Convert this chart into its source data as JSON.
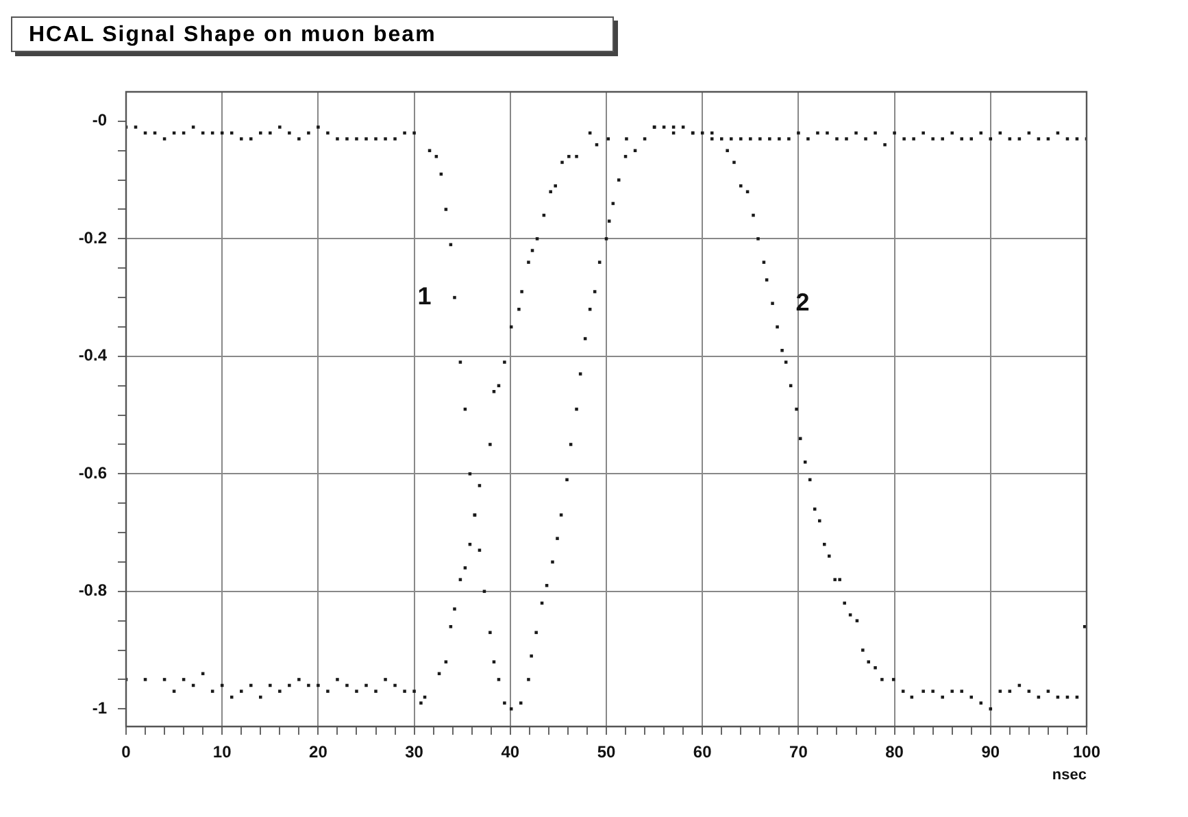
{
  "chart_data": {
    "type": "scatter",
    "title": "HCAL Signal Shape on muon beam",
    "xlabel": "nsec",
    "xlim": [
      0,
      100
    ],
    "ylim": [
      -1.03,
      0.05
    ],
    "xticks": [
      0,
      {
        "value": 2,
        "label": null
      },
      {
        "value": 4,
        "label": null
      },
      {
        "value": 6,
        "label": null
      },
      {
        "value": 8,
        "label": null
      },
      10,
      {
        "value": 12,
        "label": null
      },
      {
        "value": 14,
        "label": null
      },
      {
        "value": 16,
        "label": null
      },
      {
        "value": 18,
        "label": null
      },
      20,
      {
        "value": 22,
        "label": null
      },
      {
        "value": 24,
        "label": null
      },
      {
        "value": 26,
        "label": null
      },
      {
        "value": 28,
        "label": null
      },
      30,
      {
        "value": 32,
        "label": null
      },
      {
        "value": 34,
        "label": null
      },
      {
        "value": 36,
        "label": null
      },
      {
        "value": 38,
        "label": null
      },
      40,
      {
        "value": 42,
        "label": null
      },
      {
        "value": 44,
        "label": null
      },
      {
        "value": 46,
        "label": null
      },
      {
        "value": 48,
        "label": null
      },
      50,
      {
        "value": 52,
        "label": null
      },
      {
        "value": 54,
        "label": null
      },
      {
        "value": 56,
        "label": null
      },
      {
        "value": 58,
        "label": null
      },
      60,
      {
        "value": 62,
        "label": null
      },
      {
        "value": 64,
        "label": null
      },
      {
        "value": 66,
        "label": null
      },
      {
        "value": 68,
        "label": null
      },
      70,
      {
        "value": 72,
        "label": null
      },
      {
        "value": 74,
        "label": null
      },
      {
        "value": 76,
        "label": null
      },
      {
        "value": 78,
        "label": null
      },
      80,
      {
        "value": 82,
        "label": null
      },
      {
        "value": 84,
        "label": null
      },
      {
        "value": 86,
        "label": null
      },
      {
        "value": 88,
        "label": null
      },
      90,
      {
        "value": 92,
        "label": null
      },
      {
        "value": 94,
        "label": null
      },
      {
        "value": 96,
        "label": null
      },
      {
        "value": 98,
        "label": null
      },
      100
    ],
    "yticks": [
      {
        "value": 0,
        "label": "-0"
      },
      {
        "value": -0.05,
        "label": null
      },
      {
        "value": -0.1,
        "label": null
      },
      {
        "value": -0.15,
        "label": null
      },
      -0.2,
      {
        "value": -0.25,
        "label": null
      },
      {
        "value": -0.3,
        "label": null
      },
      {
        "value": -0.35,
        "label": null
      },
      -0.4,
      {
        "value": -0.45,
        "label": null
      },
      {
        "value": -0.5,
        "label": null
      },
      {
        "value": -0.55,
        "label": null
      },
      -0.6,
      {
        "value": -0.65,
        "label": null
      },
      {
        "value": -0.7,
        "label": null
      },
      {
        "value": -0.75,
        "label": null
      },
      -0.8,
      {
        "value": -0.85,
        "label": null
      },
      {
        "value": -0.9,
        "label": null
      },
      {
        "value": -0.95,
        "label": null
      },
      -1
    ],
    "grid": true,
    "marker": "square",
    "annotations": [
      {
        "text": "1",
        "x": 34.2,
        "y": -0.3
      },
      {
        "text": "2",
        "x": 67.3,
        "y": -0.31
      }
    ],
    "series": [
      {
        "color": "#1a1a1a",
        "x": [
          0,
          1,
          2,
          3,
          4,
          5,
          6,
          7,
          8,
          9,
          10,
          11,
          12,
          13,
          14,
          15,
          16,
          17,
          18,
          19,
          20,
          21,
          22,
          23,
          24,
          25,
          26,
          27,
          28,
          29,
          30,
          31.6,
          32.3,
          32.8,
          33.3,
          33.8,
          34.2,
          34.8,
          35.3,
          35.8,
          36.3,
          36.8,
          37.3,
          37.9,
          38.3,
          38.8,
          39.4,
          40.1,
          41.1,
          41.9,
          42.2,
          42.7,
          43.3,
          43.8,
          44.4,
          44.9,
          45.3,
          45.9,
          46.3,
          46.9,
          47.3,
          47.8,
          48.3,
          48.8,
          49.3,
          50.0,
          50.3,
          50.7,
          51.3,
          52.0,
          53.0,
          54,
          55,
          56,
          57,
          58,
          59,
          60,
          61,
          62,
          63,
          64,
          65,
          66,
          67,
          68,
          69,
          70,
          71,
          72,
          73,
          74,
          75,
          76,
          77,
          78,
          79,
          80,
          81,
          82,
          83,
          84,
          85,
          86,
          87,
          88,
          89,
          90,
          91,
          92,
          93,
          94,
          95,
          96,
          97,
          98,
          99,
          100
        ],
        "values": [
          -0.01,
          -0.01,
          -0.02,
          -0.02,
          -0.03,
          -0.02,
          -0.02,
          -0.01,
          -0.02,
          -0.02,
          -0.02,
          -0.02,
          -0.03,
          -0.03,
          -0.02,
          -0.02,
          -0.01,
          -0.02,
          -0.03,
          -0.02,
          -0.01,
          -0.02,
          -0.03,
          -0.03,
          -0.03,
          -0.03,
          -0.03,
          -0.03,
          -0.03,
          -0.02,
          -0.02,
          -0.05,
          -0.06,
          -0.09,
          -0.15,
          -0.21,
          -0.3,
          -0.41,
          -0.49,
          -0.6,
          -0.67,
          -0.73,
          -0.8,
          -0.87,
          -0.92,
          -0.95,
          -0.99,
          -1.0,
          -0.99,
          -0.95,
          -0.91,
          -0.87,
          -0.82,
          -0.79,
          -0.75,
          -0.71,
          -0.67,
          -0.61,
          -0.55,
          -0.49,
          -0.43,
          -0.37,
          -0.32,
          -0.29,
          -0.24,
          -0.2,
          -0.17,
          -0.14,
          -0.1,
          -0.06,
          -0.05,
          -0.03,
          -0.01,
          -0.01,
          -0.02,
          -0.01,
          -0.02,
          -0.02,
          -0.03,
          -0.03,
          -0.03,
          -0.03,
          -0.03,
          -0.03,
          -0.03,
          -0.03,
          -0.03,
          -0.02,
          -0.03,
          -0.02,
          -0.02,
          -0.03,
          -0.03,
          -0.02,
          -0.03,
          -0.02,
          -0.04,
          -0.02,
          -0.03,
          -0.03,
          -0.02,
          -0.03,
          -0.03,
          -0.02,
          -0.03,
          -0.03,
          -0.02,
          -0.03,
          -0.02,
          -0.03,
          -0.03,
          -0.02,
          -0.03,
          -0.03,
          -0.02,
          -0.03,
          -0.03,
          -0.03
        ]
      },
      {
        "color": "#1a1a1a",
        "x": [
          0,
          2,
          4,
          5,
          6,
          7,
          8,
          9,
          10,
          11,
          12,
          13,
          14,
          15,
          16,
          17,
          18,
          19,
          20,
          21,
          22,
          23,
          24,
          25,
          26,
          27,
          28,
          29,
          30,
          30.7,
          31.1,
          32.6,
          33.3,
          33.8,
          34.2,
          34.8,
          35.3,
          35.8,
          36.3,
          36.8,
          37.9,
          38.3,
          38.8,
          39.4,
          40.1,
          40.9,
          41.2,
          41.9,
          42.3,
          42.8,
          43.5,
          44.2,
          44.7,
          45.4,
          46.1,
          46.9,
          48.3,
          49,
          50.2,
          52.1,
          55,
          57,
          59,
          61,
          62.6,
          63.3,
          64,
          64.7,
          65.3,
          65.8,
          66.4,
          66.7,
          67.3,
          67.8,
          68.3,
          68.7,
          69.2,
          69.8,
          70.2,
          70.7,
          71.2,
          71.7,
          72.2,
          72.7,
          73.2,
          73.8,
          74.3,
          74.8,
          75.4,
          76.1,
          76.7,
          77.3,
          78.0,
          78.7,
          79.9,
          80.9,
          81.8,
          83,
          84,
          85,
          86,
          87,
          88,
          89,
          90,
          91,
          92,
          93,
          94,
          95,
          96,
          97,
          98,
          99,
          99.8
        ],
        "values": [
          -0.95,
          -0.95,
          -0.95,
          -0.97,
          -0.95,
          -0.96,
          -0.94,
          -0.97,
          -0.96,
          -0.98,
          -0.97,
          -0.96,
          -0.98,
          -0.96,
          -0.97,
          -0.96,
          -0.95,
          -0.96,
          -0.96,
          -0.97,
          -0.95,
          -0.96,
          -0.97,
          -0.96,
          -0.97,
          -0.95,
          -0.96,
          -0.97,
          -0.97,
          -0.99,
          -0.98,
          -0.94,
          -0.92,
          -0.86,
          -0.83,
          -0.78,
          -0.76,
          -0.72,
          -0.67,
          -0.62,
          -0.55,
          -0.46,
          -0.45,
          -0.41,
          -0.35,
          -0.32,
          -0.29,
          -0.24,
          -0.22,
          -0.2,
          -0.16,
          -0.12,
          -0.11,
          -0.07,
          -0.06,
          -0.06,
          -0.02,
          -0.04,
          -0.03,
          -0.03,
          -0.01,
          -0.01,
          -0.02,
          -0.02,
          -0.05,
          -0.07,
          -0.11,
          -0.12,
          -0.16,
          -0.2,
          -0.24,
          -0.27,
          -0.31,
          -0.35,
          -0.39,
          -0.41,
          -0.45,
          -0.49,
          -0.54,
          -0.58,
          -0.61,
          -0.66,
          -0.68,
          -0.72,
          -0.74,
          -0.78,
          -0.78,
          -0.82,
          -0.84,
          -0.85,
          -0.9,
          -0.92,
          -0.93,
          -0.95,
          -0.95,
          -0.97,
          -0.98,
          -0.97,
          -0.97,
          -0.98,
          -0.97,
          -0.97,
          -0.98,
          -0.99,
          -1.0,
          -0.97,
          -0.97,
          -0.96,
          -0.97,
          -0.98,
          -0.97,
          -0.98,
          -0.98,
          -0.98,
          -0.86
        ]
      }
    ]
  }
}
